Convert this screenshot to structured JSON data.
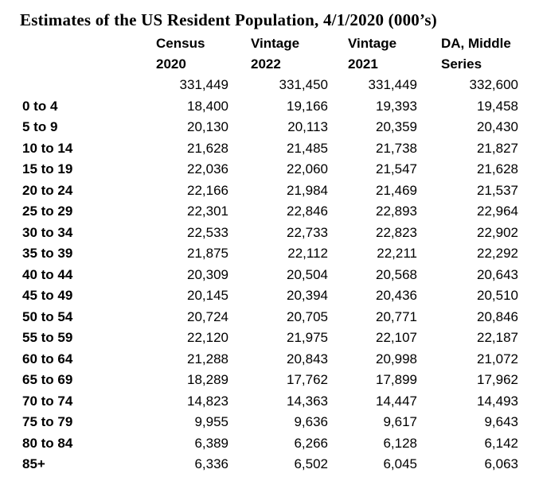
{
  "title": "Estimates of the US Resident Population, 4/1/2020 (000’s)",
  "table": {
    "columns": [
      {
        "line1": "Census",
        "line2": "2020"
      },
      {
        "line1": "Vintage",
        "line2": "2022"
      },
      {
        "line1": "Vintage",
        "line2": "2021"
      },
      {
        "line1": "DA, Middle",
        "line2": "Series"
      }
    ],
    "total_row": {
      "label": "",
      "values": [
        "331,449",
        "331,450",
        "331,449",
        "332,600"
      ]
    },
    "rows": [
      {
        "label": "0 to 4",
        "values": [
          "18,400",
          "19,166",
          "19,393",
          "19,458"
        ]
      },
      {
        "label": "5 to 9",
        "values": [
          "20,130",
          "20,113",
          "20,359",
          "20,430"
        ]
      },
      {
        "label": "10 to 14",
        "values": [
          "21,628",
          "21,485",
          "21,738",
          "21,827"
        ]
      },
      {
        "label": "15 to 19",
        "values": [
          "22,036",
          "22,060",
          "21,547",
          "21,628"
        ]
      },
      {
        "label": "20 to 24",
        "values": [
          "22,166",
          "21,984",
          "21,469",
          "21,537"
        ]
      },
      {
        "label": "25 to 29",
        "values": [
          "22,301",
          "22,846",
          "22,893",
          "22,964"
        ]
      },
      {
        "label": "30 to 34",
        "values": [
          "22,533",
          "22,733",
          "22,823",
          "22,902"
        ]
      },
      {
        "label": "35 to 39",
        "values": [
          "21,875",
          "22,112",
          "22,211",
          "22,292"
        ]
      },
      {
        "label": "40 to 44",
        "values": [
          "20,309",
          "20,504",
          "20,568",
          "20,643"
        ]
      },
      {
        "label": "45 to 49",
        "values": [
          "20,145",
          "20,394",
          "20,436",
          "20,510"
        ]
      },
      {
        "label": "50 to 54",
        "values": [
          "20,724",
          "20,705",
          "20,771",
          "20,846"
        ]
      },
      {
        "label": "55 to 59",
        "values": [
          "22,120",
          "21,975",
          "22,107",
          "22,187"
        ]
      },
      {
        "label": "60 to 64",
        "values": [
          "21,288",
          "20,843",
          "20,998",
          "21,072"
        ]
      },
      {
        "label": "65 to 69",
        "values": [
          "18,289",
          "17,762",
          "17,899",
          "17,962"
        ]
      },
      {
        "label": "70 to 74",
        "values": [
          "14,823",
          "14,363",
          "14,447",
          "14,493"
        ]
      },
      {
        "label": "75 to 79",
        "values": [
          "9,955",
          "9,636",
          "9,617",
          "9,643"
        ]
      },
      {
        "label": "80 to 84",
        "values": [
          "6,389",
          "6,266",
          "6,128",
          "6,142"
        ]
      },
      {
        "label": "85+",
        "values": [
          "6,336",
          "6,502",
          "6,045",
          "6,063"
        ]
      }
    ]
  },
  "chart_data": {
    "type": "table",
    "title": "Estimates of the US Resident Population, 4/1/2020 (000’s)",
    "units": "thousands of persons",
    "columns": [
      "Census 2020",
      "Vintage 2022",
      "Vintage 2021",
      "DA, Middle Series"
    ],
    "categories": [
      "",
      "0 to 4",
      "5 to 9",
      "10 to 14",
      "15 to 19",
      "20 to 24",
      "25 to 29",
      "30 to 34",
      "35 to 39",
      "40 to 44",
      "45 to 49",
      "50 to 54",
      "55 to 59",
      "60 to 64",
      "65 to 69",
      "70 to 74",
      "75 to 79",
      "80 to 84",
      "85+"
    ],
    "series": [
      {
        "name": "Census 2020",
        "values": [
          331449,
          18400,
          20130,
          21628,
          22036,
          22166,
          22301,
          22533,
          21875,
          20309,
          20145,
          20724,
          22120,
          21288,
          18289,
          14823,
          9955,
          6389,
          6336
        ]
      },
      {
        "name": "Vintage 2022",
        "values": [
          331450,
          19166,
          20113,
          21485,
          22060,
          21984,
          22846,
          22733,
          22112,
          20504,
          20394,
          20705,
          21975,
          20843,
          17762,
          14363,
          9636,
          6266,
          6502
        ]
      },
      {
        "name": "Vintage 2021",
        "values": [
          331449,
          19393,
          20359,
          21738,
          21547,
          21469,
          22893,
          22823,
          22211,
          20568,
          20436,
          20771,
          22107,
          20998,
          17899,
          14447,
          9617,
          6128,
          6045
        ]
      },
      {
        "name": "DA, Middle Series",
        "values": [
          332600,
          19458,
          20430,
          21827,
          21628,
          21537,
          22964,
          22902,
          22292,
          20643,
          20510,
          20846,
          22187,
          21072,
          17962,
          14493,
          9643,
          6142,
          6063
        ]
      }
    ],
    "text_color": "#000000",
    "background_color": "#ffffff"
  }
}
